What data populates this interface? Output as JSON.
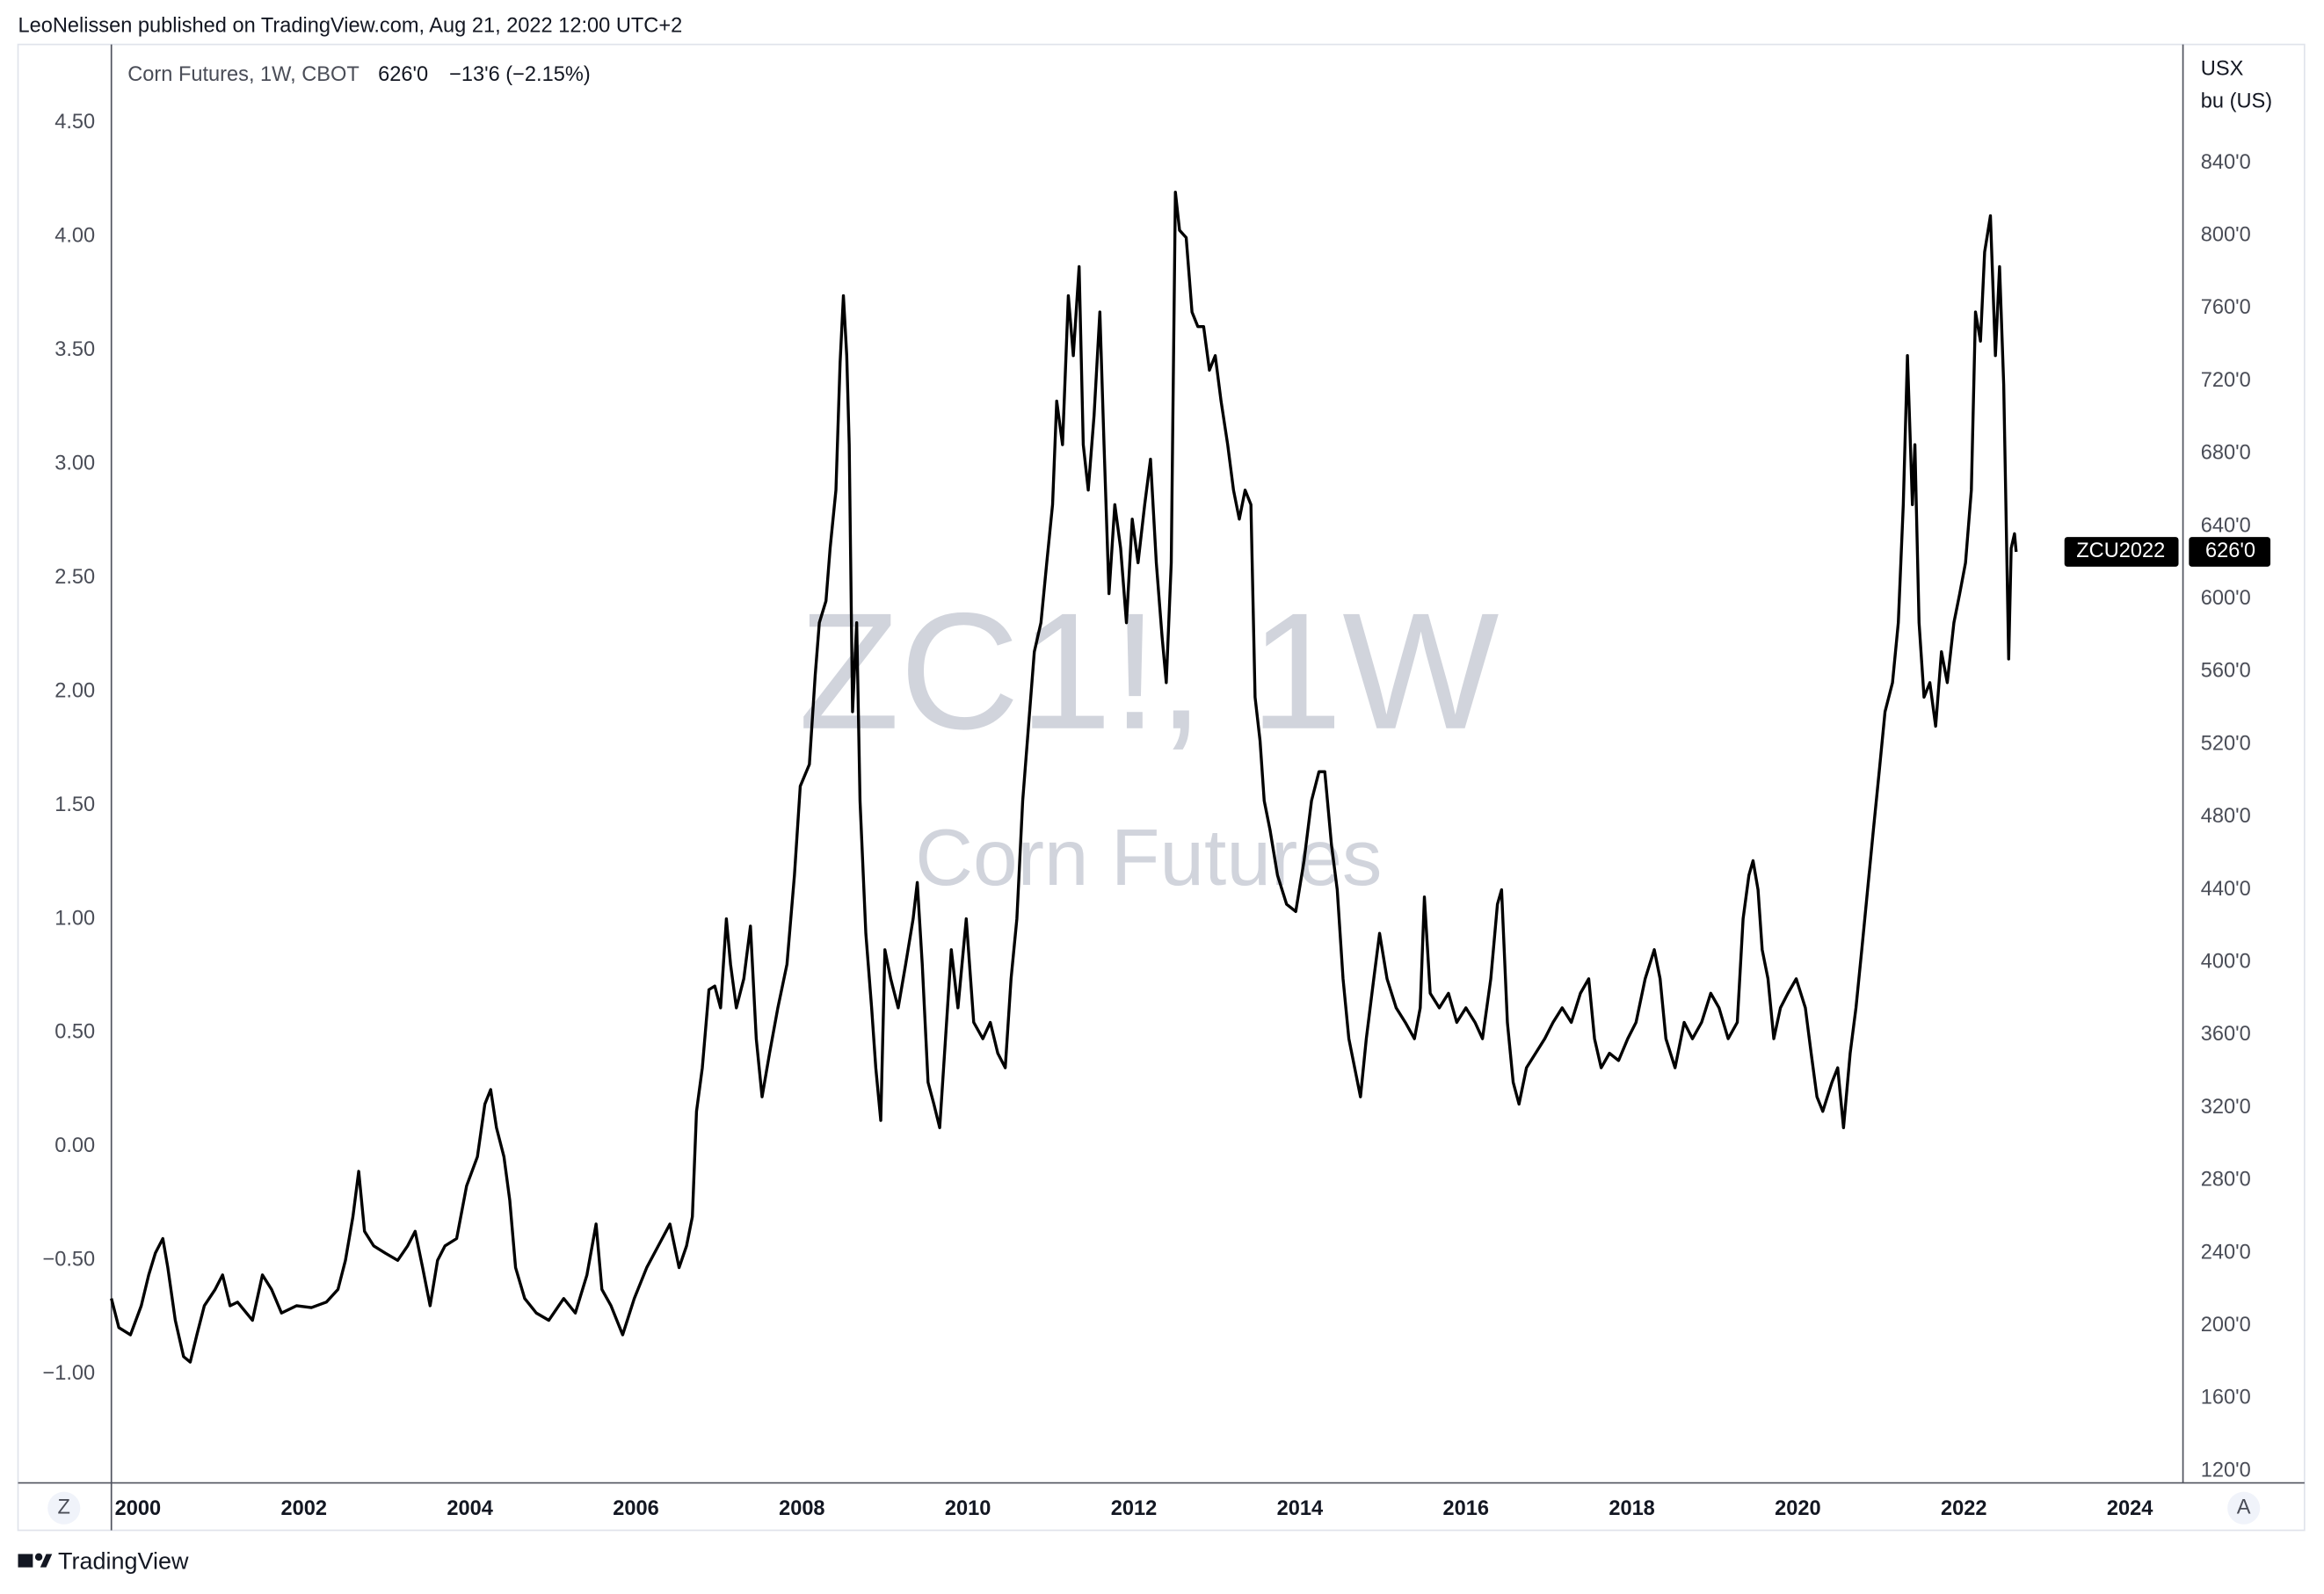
{
  "chart_data": {
    "type": "line",
    "publisher": "LeoNelissen published on TradingView.com, Aug 21, 2022 12:00 UTC+2",
    "legend_title": "Corn Futures, 1W, CBOT",
    "legend_price": "626'0",
    "legend_change": "−13'6 (−2.15%)",
    "watermark_symbol": "ZC1!, 1W",
    "watermark_name": "Corn Futures",
    "ylabel_lines": [
      "USX",
      "bu (US)"
    ],
    "brand": "TradingView",
    "time_button": "Z",
    "auto_button": "A",
    "last_price": {
      "symbol": "ZCU2022",
      "value": 626,
      "label": "626'0"
    },
    "xlim": [
      1999.68,
      2024.64
    ],
    "xticks": [
      2000,
      2002,
      2004,
      2006,
      2008,
      2010,
      2012,
      2014,
      2016,
      2018,
      2020,
      2022,
      2024
    ],
    "ylim": [
      113.5,
      905.3
    ],
    "yticks": [
      {
        "value": 120,
        "label": "120'0"
      },
      {
        "value": 160,
        "label": "160'0"
      },
      {
        "value": 200,
        "label": "200'0"
      },
      {
        "value": 240,
        "label": "240'0"
      },
      {
        "value": 280,
        "label": "280'0"
      },
      {
        "value": 320,
        "label": "320'0"
      },
      {
        "value": 360,
        "label": "360'0"
      },
      {
        "value": 400,
        "label": "400'0"
      },
      {
        "value": 440,
        "label": "440'0"
      },
      {
        "value": 480,
        "label": "480'0"
      },
      {
        "value": 520,
        "label": "520'0"
      },
      {
        "value": 560,
        "label": "560'0"
      },
      {
        "value": 600,
        "label": "600'0"
      },
      {
        "value": 640,
        "label": "640'0"
      },
      {
        "value": 680,
        "label": "680'0"
      },
      {
        "value": 720,
        "label": "720'0"
      },
      {
        "value": 760,
        "label": "760'0"
      },
      {
        "value": 800,
        "label": "800'0"
      },
      {
        "value": 840,
        "label": "840'0"
      }
    ],
    "y2lim": [
      -1.478,
      4.845
    ],
    "y2ticks": [
      {
        "value": -1,
        "label": "−1.00"
      },
      {
        "value": -0.5,
        "label": "−0.50"
      },
      {
        "value": 0,
        "label": "0.00"
      },
      {
        "value": 0.5,
        "label": "0.50"
      },
      {
        "value": 1,
        "label": "1.00"
      },
      {
        "value": 1.5,
        "label": "1.50"
      },
      {
        "value": 2,
        "label": "2.00"
      },
      {
        "value": 2.5,
        "label": "2.50"
      },
      {
        "value": 3,
        "label": "3.00"
      },
      {
        "value": 3.5,
        "label": "3.50"
      },
      {
        "value": 4,
        "label": "4.00"
      },
      {
        "value": 4.5,
        "label": "4.50"
      }
    ],
    "grid": false,
    "x": [
      1999.68,
      1999.77,
      1999.91,
      2000.04,
      2000.13,
      2000.21,
      2000.3,
      2000.36,
      2000.45,
      2000.55,
      2000.63,
      2000.71,
      2000.8,
      2000.93,
      2001.02,
      2001.11,
      2001.2,
      2001.38,
      2001.5,
      2001.61,
      2001.73,
      2001.91,
      2002.09,
      2002.27,
      2002.41,
      2002.5,
      2002.59,
      2002.66,
      2002.73,
      2002.84,
      2002.98,
      2003.13,
      2003.25,
      2003.34,
      2003.43,
      2003.52,
      2003.61,
      2003.7,
      2003.84,
      2003.96,
      2004.09,
      2004.18,
      2004.25,
      2004.32,
      2004.41,
      2004.48,
      2004.55,
      2004.66,
      2004.8,
      2004.95,
      2005.13,
      2005.27,
      2005.41,
      2005.52,
      2005.59,
      2005.7,
      2005.84,
      2005.98,
      2006.13,
      2006.27,
      2006.41,
      2006.52,
      2006.61,
      2006.68,
      2006.73,
      2006.8,
      2006.88,
      2006.95,
      2007.02,
      2007.09,
      2007.14,
      2007.21,
      2007.3,
      2007.38,
      2007.45,
      2007.52,
      2007.61,
      2007.71,
      2007.82,
      2007.91,
      2007.98,
      2008.09,
      2008.16,
      2008.21,
      2008.29,
      2008.34,
      2008.41,
      2008.46,
      2008.5,
      2008.54,
      2008.57,
      2008.61,
      2008.66,
      2008.7,
      2008.77,
      2008.84,
      2008.89,
      2008.95,
      2009.0,
      2009.07,
      2009.16,
      2009.25,
      2009.34,
      2009.39,
      2009.45,
      2009.52,
      2009.59,
      2009.66,
      2009.73,
      2009.8,
      2009.88,
      2009.98,
      2010.07,
      2010.18,
      2010.27,
      2010.36,
      2010.45,
      2010.52,
      2010.59,
      2010.66,
      2010.73,
      2010.8,
      2010.88,
      2010.95,
      2011.02,
      2011.07,
      2011.14,
      2011.21,
      2011.27,
      2011.34,
      2011.39,
      2011.45,
      2011.52,
      2011.59,
      2011.64,
      2011.7,
      2011.77,
      2011.84,
      2011.91,
      2011.98,
      2012.05,
      2012.13,
      2012.2,
      2012.27,
      2012.34,
      2012.39,
      2012.45,
      2012.5,
      2012.55,
      2012.63,
      2012.7,
      2012.77,
      2012.84,
      2012.91,
      2012.98,
      2013.05,
      2013.13,
      2013.2,
      2013.27,
      2013.34,
      2013.41,
      2013.46,
      2013.52,
      2013.57,
      2013.64,
      2013.73,
      2013.84,
      2013.95,
      2014.05,
      2014.14,
      2014.23,
      2014.3,
      2014.38,
      2014.45,
      2014.52,
      2014.59,
      2014.66,
      2014.73,
      2014.8,
      2014.89,
      2014.96,
      2015.05,
      2015.16,
      2015.27,
      2015.38,
      2015.45,
      2015.5,
      2015.57,
      2015.68,
      2015.79,
      2015.89,
      2016.0,
      2016.11,
      2016.2,
      2016.3,
      2016.38,
      2016.43,
      2016.5,
      2016.57,
      2016.64,
      2016.73,
      2016.84,
      2016.95,
      2017.05,
      2017.16,
      2017.27,
      2017.38,
      2017.48,
      2017.55,
      2017.63,
      2017.73,
      2017.84,
      2017.95,
      2018.05,
      2018.16,
      2018.27,
      2018.34,
      2018.41,
      2018.52,
      2018.63,
      2018.73,
      2018.84,
      2018.95,
      2019.05,
      2019.16,
      2019.27,
      2019.34,
      2019.41,
      2019.46,
      2019.52,
      2019.57,
      2019.64,
      2019.71,
      2019.79,
      2019.88,
      2019.98,
      2020.09,
      2020.16,
      2020.23,
      2020.3,
      2020.41,
      2020.48,
      2020.55,
      2020.63,
      2020.7,
      2020.77,
      2020.84,
      2020.91,
      2020.98,
      2021.05,
      2021.14,
      2021.21,
      2021.27,
      2021.32,
      2021.38,
      2021.41,
      2021.46,
      2021.52,
      2021.59,
      2021.66,
      2021.73,
      2021.8,
      2021.88,
      2021.95,
      2022.02,
      2022.09,
      2022.14,
      2022.2,
      2022.25,
      2022.32,
      2022.38,
      2022.43,
      2022.48,
      2022.54,
      2022.57,
      2022.61,
      2022.63
    ],
    "series": [
      {
        "name": "Corn Futures",
        "color": "#000000",
        "axis": "y",
        "values": [
          215,
          199,
          195,
          211,
          228,
          240,
          248,
          232,
          203,
          183,
          180,
          195,
          211,
          220,
          228,
          211,
          213,
          203,
          228,
          220,
          207,
          211,
          210,
          213,
          220,
          236,
          260,
          285,
          252,
          244,
          240,
          236,
          244,
          252,
          232,
          211,
          236,
          244,
          248,
          277,
          293,
          322,
          330,
          309,
          293,
          269,
          232,
          215,
          207,
          203,
          215,
          207,
          228,
          256,
          220,
          211,
          195,
          215,
          232,
          244,
          256,
          232,
          244,
          260,
          318,
          342,
          385,
          387,
          375,
          424,
          399,
          375,
          391,
          420,
          358,
          326,
          350,
          375,
          399,
          448,
          497,
          509,
          558,
          587,
          599,
          628,
          660,
          730,
          767,
          734,
          685,
          538,
          587,
          489,
          416,
          375,
          342,
          313,
          407,
          391,
          375,
          399,
          424,
          444,
          399,
          334,
          322,
          309,
          358,
          407,
          375,
          424,
          367,
          358,
          367,
          350,
          342,
          391,
          424,
          489,
          530,
          571,
          587,
          620,
          652,
          709,
          685,
          767,
          734,
          783,
          685,
          660,
          701,
          758,
          685,
          603,
          652,
          628,
          587,
          644,
          620,
          652,
          677,
          620,
          579,
          554,
          620,
          824,
          803,
          799,
          758,
          750,
          750,
          726,
          734,
          709,
          685,
          660,
          644,
          660,
          652,
          546,
          522,
          489,
          473,
          448,
          432,
          428,
          456,
          489,
          505,
          505,
          465,
          440,
          391,
          358,
          342,
          326,
          358,
          391,
          416,
          391,
          375,
          367,
          358,
          375,
          436,
          383,
          375,
          383,
          367,
          375,
          367,
          358,
          391,
          432,
          440,
          367,
          334,
          322,
          342,
          350,
          358,
          367,
          375,
          367,
          383,
          391,
          358,
          342,
          350,
          346,
          358,
          367,
          391,
          407,
          391,
          358,
          342,
          367,
          358,
          367,
          383,
          375,
          358,
          367,
          424,
          448,
          456,
          440,
          407,
          391,
          358,
          375,
          383,
          391,
          375,
          350,
          326,
          318,
          334,
          342,
          309,
          350,
          375,
          407,
          440,
          473,
          505,
          538,
          554,
          587,
          652,
          734,
          652,
          685,
          587,
          546,
          554,
          530,
          571,
          554,
          587,
          603,
          620,
          660,
          758,
          742,
          791,
          811,
          734,
          783,
          718,
          567,
          628,
          636,
          626
        ]
      }
    ]
  }
}
